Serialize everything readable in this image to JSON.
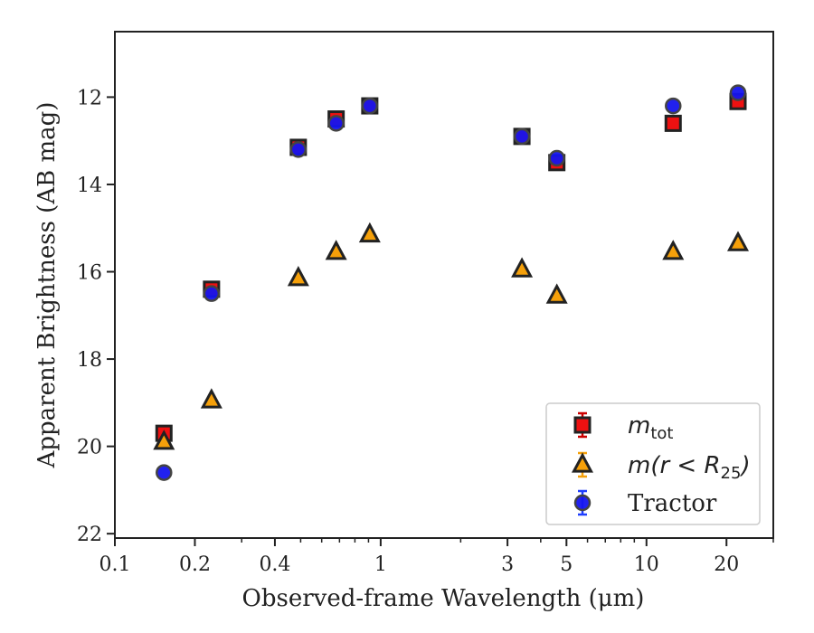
{
  "chart_data": {
    "type": "scatter",
    "xlabel": "Observed-frame Wavelength (μm)",
    "ylabel": "Apparent Brightness (AB mag)",
    "xscale": "log",
    "xlim": [
      0.1,
      30
    ],
    "ylim": [
      22.1,
      10.5
    ],
    "y_inverted": true,
    "x_major_ticks": [
      {
        "value": 0.1,
        "label": "0.1"
      },
      {
        "value": 0.2,
        "label": "0.2"
      },
      {
        "value": 0.4,
        "label": "0.4"
      },
      {
        "value": 1,
        "label": "1"
      },
      {
        "value": 3,
        "label": "3"
      },
      {
        "value": 5,
        "label": "5"
      },
      {
        "value": 10,
        "label": "10"
      },
      {
        "value": 20,
        "label": "20"
      }
    ],
    "y_major_ticks": [
      {
        "value": 12,
        "label": "12"
      },
      {
        "value": 14,
        "label": "14"
      },
      {
        "value": 16,
        "label": "16"
      },
      {
        "value": 18,
        "label": "18"
      },
      {
        "value": 20,
        "label": "20"
      },
      {
        "value": 22,
        "label": "22"
      }
    ],
    "legend_position": "lower-right",
    "series": [
      {
        "name_main": "m",
        "name_sub": "tot",
        "marker": "square",
        "color": "#ee1111",
        "edge": "#222222",
        "error_color": "#cc0000",
        "x": [
          0.153,
          0.231,
          0.49,
          0.68,
          0.91,
          3.4,
          4.6,
          12.6,
          22.1
        ],
        "y": [
          19.7,
          16.4,
          13.15,
          12.5,
          12.2,
          12.9,
          13.5,
          12.6,
          12.1
        ]
      },
      {
        "name_main": "m(r < R",
        "name_sub": "25",
        "name_tail": ")",
        "marker": "triangle",
        "color": "#f5a00a",
        "edge": "#222222",
        "error_color": "#f5a00a",
        "x": [
          0.153,
          0.231,
          0.49,
          0.68,
          0.91,
          3.4,
          4.6,
          12.6,
          22.1
        ],
        "y": [
          19.9,
          18.95,
          16.15,
          15.55,
          15.15,
          15.95,
          16.55,
          15.55,
          15.35
        ]
      },
      {
        "name": "Tractor",
        "marker": "circle",
        "color": "#1515ee",
        "edge": "#444444",
        "error_color": "#1f3fff",
        "x": [
          0.153,
          0.231,
          0.49,
          0.68,
          0.91,
          3.4,
          4.6,
          12.6,
          22.1
        ],
        "y": [
          20.6,
          16.5,
          13.2,
          12.6,
          12.2,
          12.9,
          13.4,
          12.2,
          11.9
        ]
      }
    ]
  }
}
